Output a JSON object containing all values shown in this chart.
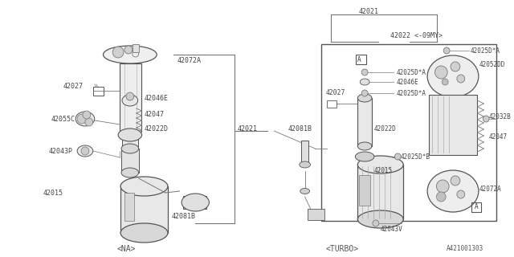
{
  "bg_color": "#ffffff",
  "line_color": "#777777",
  "text_color": "#444444",
  "part_number": "A421001303",
  "na_label": "<NA>",
  "turbo_label": "<TURBO>"
}
